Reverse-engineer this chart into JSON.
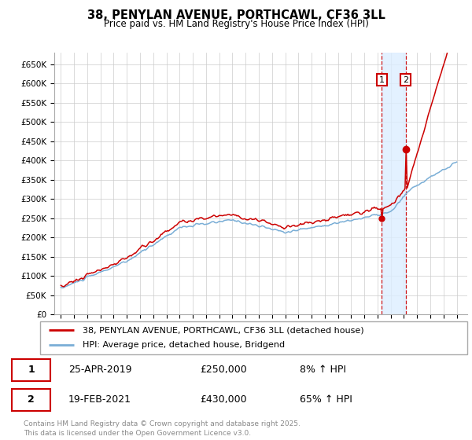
{
  "title": "38, PENYLAN AVENUE, PORTHCAWL, CF36 3LL",
  "subtitle": "Price paid vs. HM Land Registry's House Price Index (HPI)",
  "ylabel_ticks": [
    "£0",
    "£50K",
    "£100K",
    "£150K",
    "£200K",
    "£250K",
    "£300K",
    "£350K",
    "£400K",
    "£450K",
    "£500K",
    "£550K",
    "£600K",
    "£650K"
  ],
  "ytick_values": [
    0,
    50000,
    100000,
    150000,
    200000,
    250000,
    300000,
    350000,
    400000,
    450000,
    500000,
    550000,
    600000,
    650000
  ],
  "ylim": [
    0,
    680000
  ],
  "legend_line1": "38, PENYLAN AVENUE, PORTHCAWL, CF36 3LL (detached house)",
  "legend_line2": "HPI: Average price, detached house, Bridgend",
  "annotation1_label": "1",
  "annotation1_date": "25-APR-2019",
  "annotation1_price": "£250,000",
  "annotation1_pct": "8% ↑ HPI",
  "annotation2_label": "2",
  "annotation2_date": "19-FEB-2021",
  "annotation2_price": "£430,000",
  "annotation2_pct": "65% ↑ HPI",
  "footer": "Contains HM Land Registry data © Crown copyright and database right 2025.\nThis data is licensed under the Open Government Licence v3.0.",
  "line1_color": "#cc0000",
  "line2_color": "#7aaed6",
  "vline_color": "#cc0000",
  "shade_color": "#ddeeff",
  "background_color": "#ffffff",
  "grid_color": "#cccccc",
  "annotation_box_color": "#cc0000",
  "sale1_t": 2019.32,
  "sale2_t": 2021.13,
  "sale1_price": 250000,
  "sale2_price": 430000
}
